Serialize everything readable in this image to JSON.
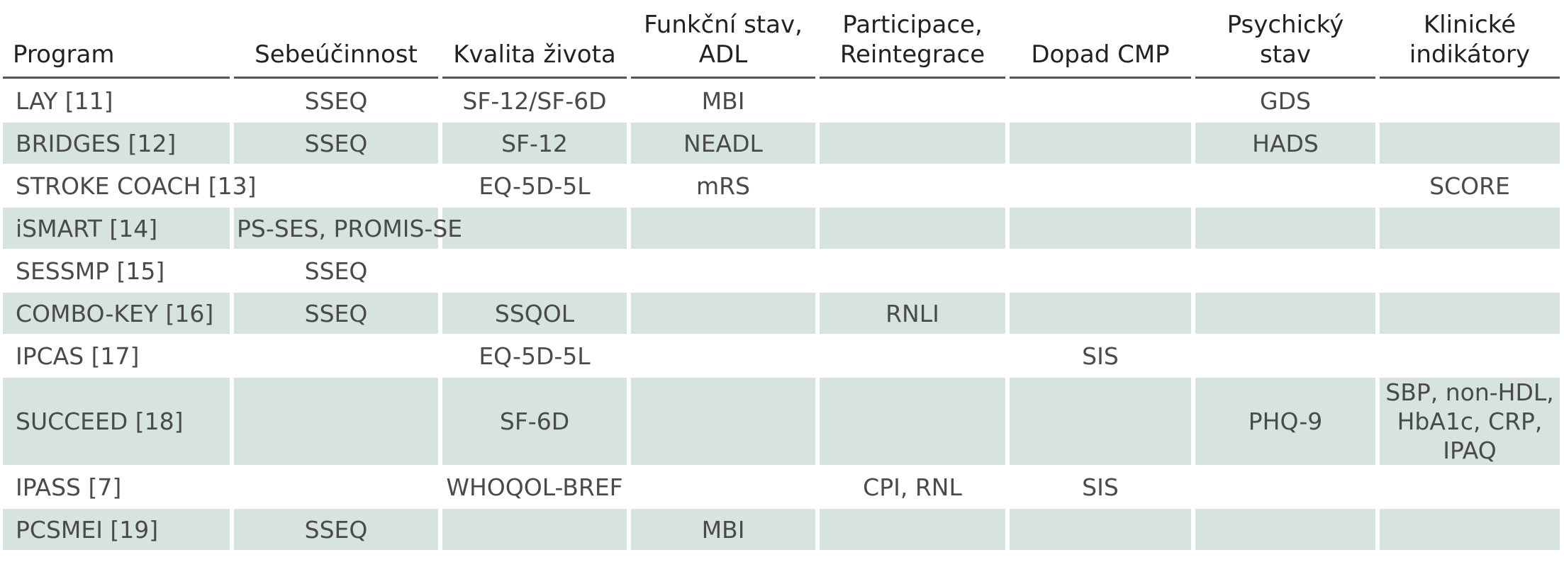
{
  "headers": [
    "Program",
    "Sebeúčinnost",
    "Kvalita života",
    "Funkční stav, ADL",
    "Participace, Reintegrace",
    "Dopad CMP",
    "Psychický stav",
    "Klinické indikátory"
  ],
  "rows": [
    [
      "LAY [11]",
      "SSEQ",
      "SF-12/SF-6D",
      "MBI",
      "",
      "",
      "GDS",
      ""
    ],
    [
      "BRIDGES [12]",
      "SSEQ",
      "SF-12",
      "NEADL",
      "",
      "",
      "HADS",
      ""
    ],
    [
      "STROKE COACH [13]",
      "",
      "EQ-5D-5L",
      "mRS",
      "",
      "",
      "",
      "SCORE"
    ],
    [
      "iSMART [14]",
      "PS-SES, PROMIS-SE",
      "",
      "",
      "",
      "",
      "",
      ""
    ],
    [
      "SESSMP [15]",
      "SSEQ",
      "",
      "",
      "",
      "",
      "",
      ""
    ],
    [
      "COMBO-KEY [16]",
      "SSEQ",
      "SSQOL",
      "",
      "RNLI",
      "",
      "",
      ""
    ],
    [
      "IPCAS [17]",
      "",
      "EQ-5D-5L",
      "",
      "",
      "SIS",
      "",
      ""
    ],
    [
      "SUCCEED [18]",
      "",
      "SF-6D",
      "",
      "",
      "",
      "PHQ-9",
      "SBP, non-HDL, HbA1c, CRP, IPAQ"
    ],
    [
      "IPASS [7]",
      "",
      "WHOQOL-BREF",
      "",
      "CPI, RNL",
      "SIS",
      "",
      ""
    ],
    [
      "PCSMEI [19]",
      "SSEQ",
      "",
      "MBI",
      "",
      "",
      "",
      ""
    ]
  ],
  "colors": {
    "shade": "#d6e3e1",
    "rule": "#555555"
  }
}
